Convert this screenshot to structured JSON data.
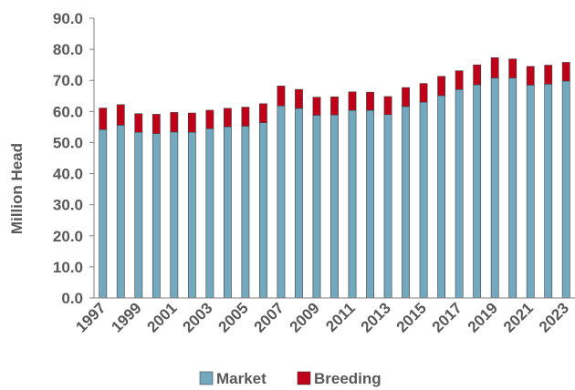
{
  "chart_data": {
    "type": "bar",
    "stacked": true,
    "ylabel": "Million Head",
    "ylim": [
      0,
      90
    ],
    "ytick_step": 10,
    "y_tick_labels": [
      "0.0",
      "10.0",
      "20.0",
      "30.0",
      "40.0",
      "50.0",
      "60.0",
      "70.0",
      "80.0",
      "90.0"
    ],
    "categories": [
      "1997",
      "1998",
      "1999",
      "2000",
      "2001",
      "2002",
      "2003",
      "2004",
      "2005",
      "2006",
      "2007",
      "2008",
      "2009",
      "2010",
      "2011",
      "2012",
      "2013",
      "2014",
      "2015",
      "2016",
      "2017",
      "2018",
      "2019",
      "2020",
      "2021",
      "2022",
      "2023"
    ],
    "x_label_every": 2,
    "grid": false,
    "legend_position": "bottom",
    "series": [
      {
        "name": "Market",
        "color": "#72A9BE",
        "values": [
          54.2,
          55.6,
          53.3,
          52.9,
          53.4,
          53.3,
          54.5,
          55.1,
          55.3,
          56.4,
          61.8,
          61.0,
          58.8,
          58.9,
          60.4,
          60.4,
          59.0,
          61.6,
          63.0,
          65.1,
          67.1,
          68.6,
          70.8,
          70.8,
          68.5,
          68.8,
          69.8
        ]
      },
      {
        "name": "Breeding",
        "color": "#C00018",
        "values": [
          6.9,
          6.6,
          6.0,
          6.2,
          6.3,
          6.2,
          5.9,
          5.9,
          6.1,
          6.1,
          6.4,
          6.1,
          5.8,
          5.8,
          5.9,
          5.8,
          5.8,
          6.1,
          6.0,
          6.2,
          6.0,
          6.4,
          6.5,
          6.1,
          6.0,
          6.1,
          6.0
        ]
      }
    ]
  }
}
